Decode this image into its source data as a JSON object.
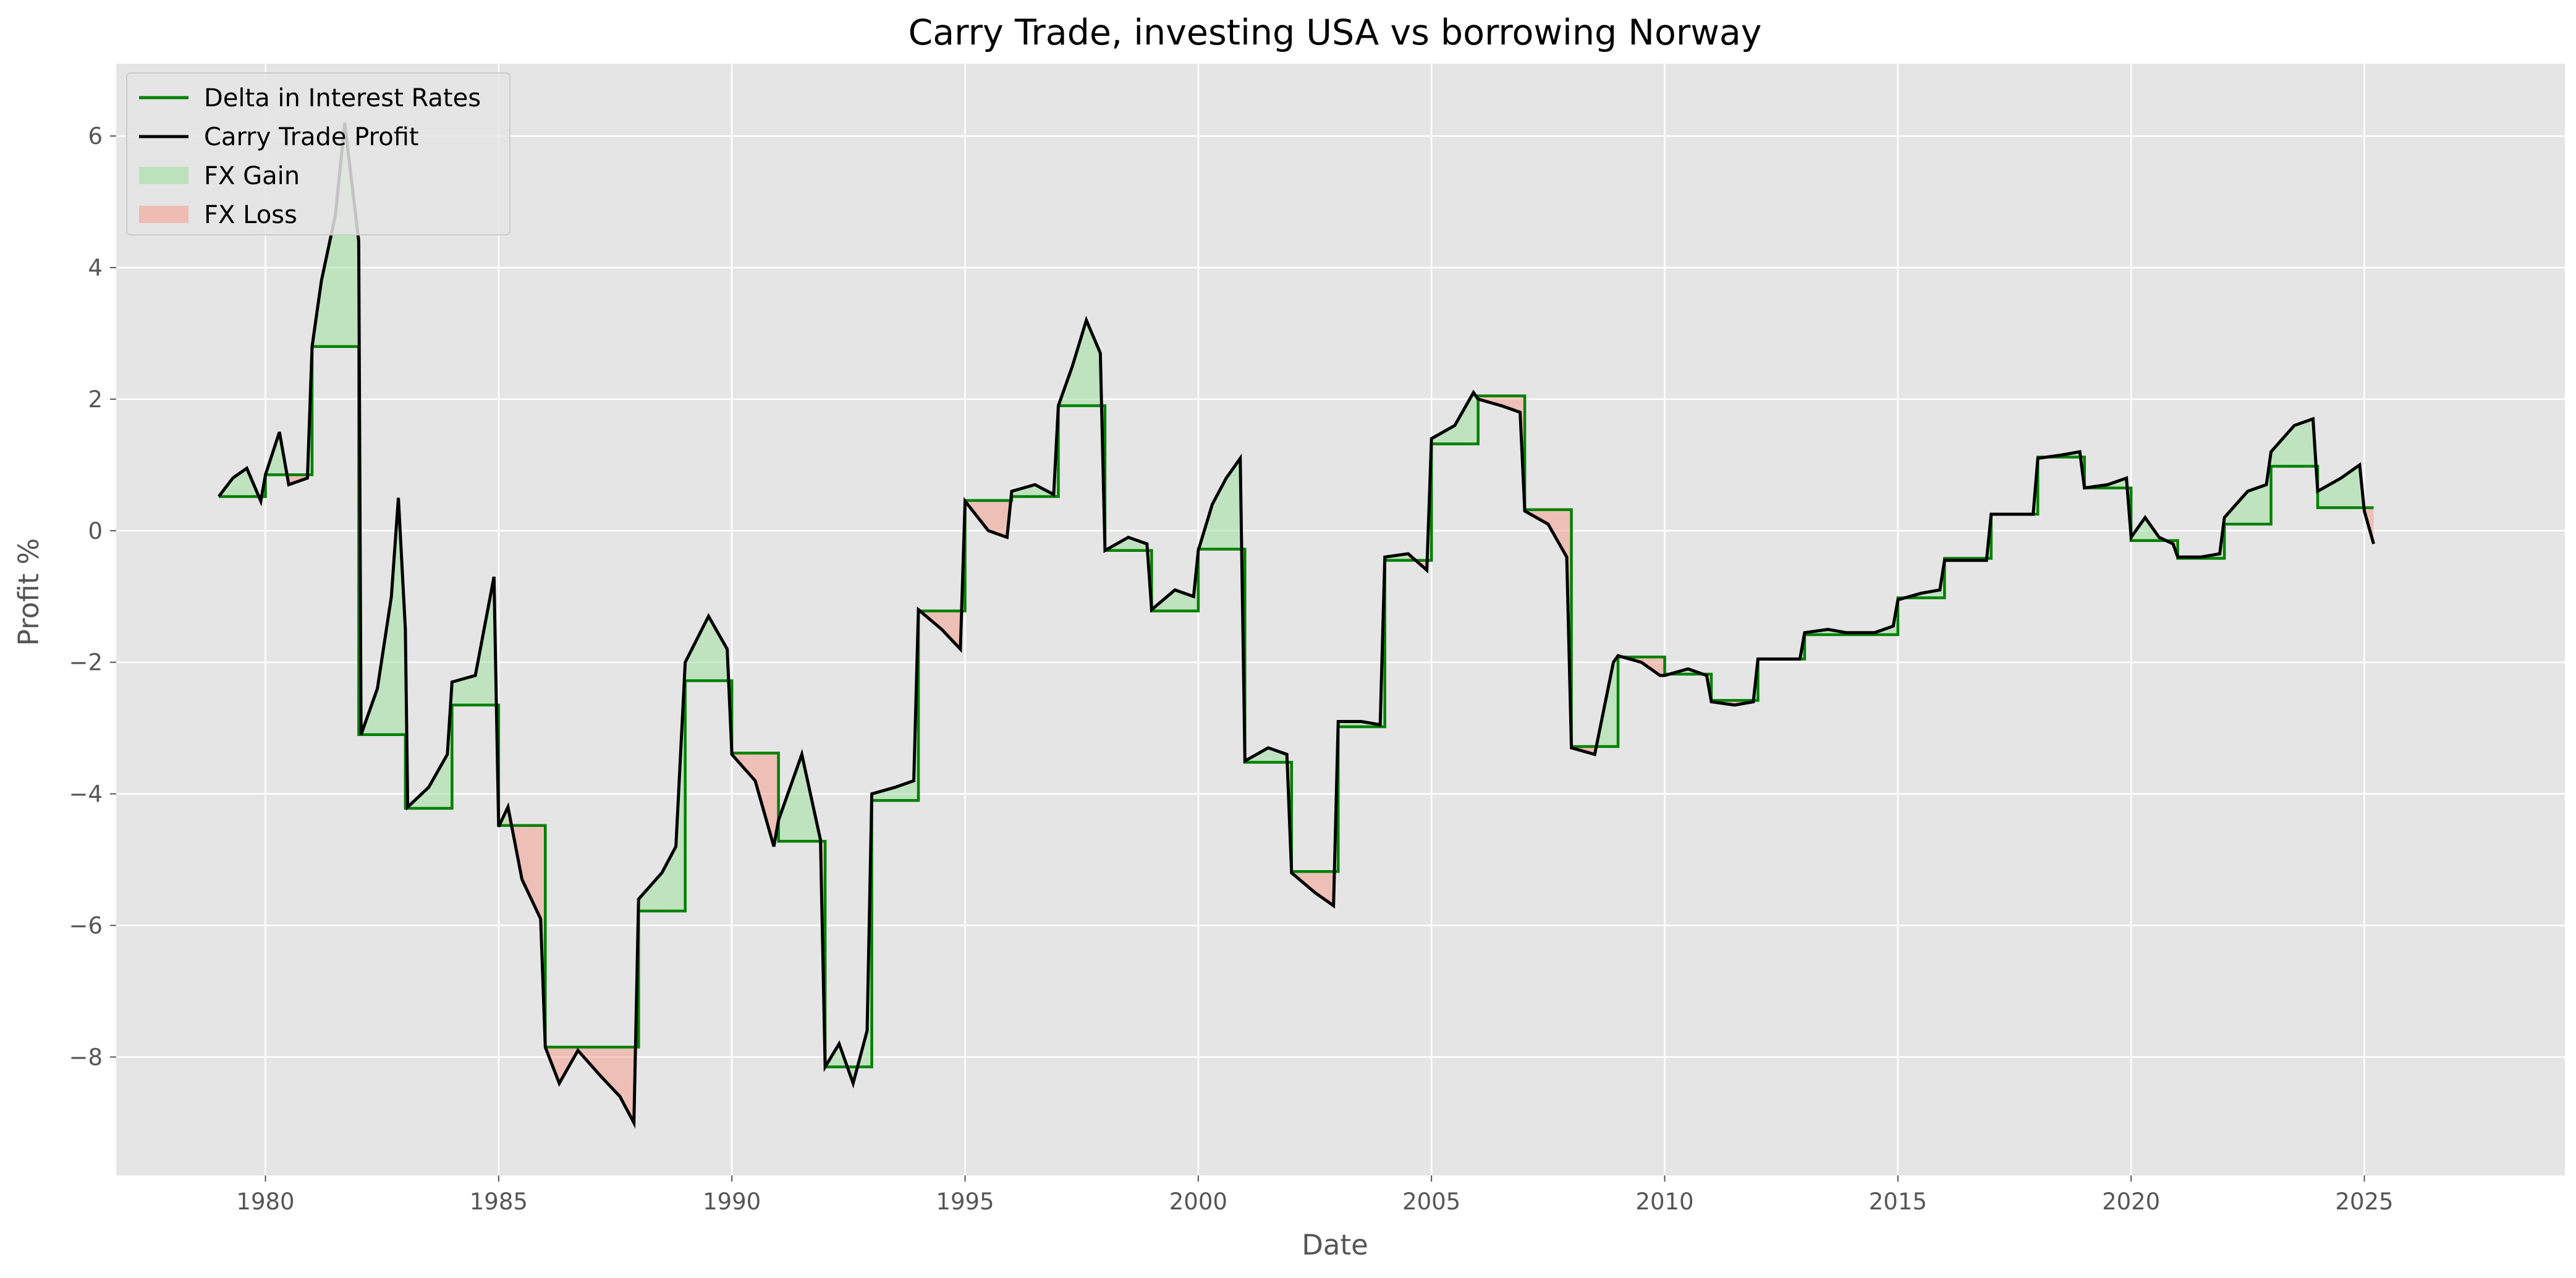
{
  "chart_data": {
    "type": "line",
    "title": "Carry Trade, investing USA vs borrowing Norway",
    "xlabel": "Date",
    "ylabel": "Profit %",
    "xlim": [
      1976.8,
      2029.3
    ],
    "ylim": [
      -9.8,
      7.1
    ],
    "xticks": [
      1980,
      1985,
      1990,
      1995,
      2000,
      2005,
      2010,
      2015,
      2020,
      2025
    ],
    "yticks": [
      6,
      4,
      2,
      0,
      -2,
      -4,
      -6,
      -8
    ],
    "grid": true,
    "legend_position": "top-left",
    "legend": [
      {
        "label": "Delta in Interest Rates",
        "kind": "line",
        "color": "#008000"
      },
      {
        "label": "Carry Trade Profit",
        "kind": "line",
        "color": "#000000"
      },
      {
        "label": "FX Gain",
        "kind": "patch",
        "color": "#a0e0a0"
      },
      {
        "label": "FX Loss",
        "kind": "patch",
        "color": "#f4a090"
      }
    ],
    "series": [
      {
        "name": "Delta in Interest Rates",
        "color": "#008000",
        "style": "step",
        "points": [
          [
            1979.0,
            0.52
          ],
          [
            1980.0,
            0.85
          ],
          [
            1981.0,
            2.8
          ],
          [
            1982.0,
            -3.1
          ],
          [
            1983.0,
            -4.22
          ],
          [
            1984.0,
            -2.65
          ],
          [
            1985.0,
            -4.48
          ],
          [
            1986.0,
            -7.85
          ],
          [
            1988.0,
            -5.78
          ],
          [
            1989.0,
            -2.28
          ],
          [
            1990.0,
            -3.38
          ],
          [
            1991.0,
            -4.72
          ],
          [
            1992.0,
            -8.15
          ],
          [
            1993.0,
            -4.1
          ],
          [
            1994.0,
            -1.22
          ],
          [
            1995.0,
            0.46
          ],
          [
            1996.0,
            0.52
          ],
          [
            1997.0,
            1.9
          ],
          [
            1998.0,
            -0.3
          ],
          [
            1999.0,
            -1.22
          ],
          [
            2000.0,
            -0.28
          ],
          [
            2001.0,
            -3.52
          ],
          [
            2002.0,
            -5.18
          ],
          [
            2003.0,
            -2.98
          ],
          [
            2004.0,
            -0.45
          ],
          [
            2005.0,
            1.32
          ],
          [
            2006.0,
            2.05
          ],
          [
            2007.0,
            0.32
          ],
          [
            2008.0,
            -3.28
          ],
          [
            2009.0,
            -1.92
          ],
          [
            2010.0,
            -2.18
          ],
          [
            2011.0,
            -2.58
          ],
          [
            2012.0,
            -1.95
          ],
          [
            2013.0,
            -1.58
          ],
          [
            2014.0,
            -1.58
          ],
          [
            2015.0,
            -1.02
          ],
          [
            2016.0,
            -0.42
          ],
          [
            2017.0,
            0.25
          ],
          [
            2018.0,
            1.12
          ],
          [
            2019.0,
            0.65
          ],
          [
            2020.0,
            -0.15
          ],
          [
            2021.0,
            -0.42
          ],
          [
            2022.0,
            0.1
          ],
          [
            2023.0,
            0.98
          ],
          [
            2024.0,
            0.35
          ],
          [
            2025.2,
            0.35
          ]
        ]
      },
      {
        "name": "Carry Trade Profit",
        "color": "#000000",
        "style": "line",
        "points": [
          [
            1979.0,
            0.52
          ],
          [
            1979.3,
            0.8
          ],
          [
            1979.6,
            0.95
          ],
          [
            1979.9,
            0.45
          ],
          [
            1980.0,
            0.85
          ],
          [
            1980.3,
            1.5
          ],
          [
            1980.5,
            0.7
          ],
          [
            1980.9,
            0.8
          ],
          [
            1981.0,
            2.8
          ],
          [
            1981.2,
            3.8
          ],
          [
            1981.5,
            4.8
          ],
          [
            1981.7,
            6.2
          ],
          [
            1981.9,
            5.0
          ],
          [
            1982.0,
            4.4
          ],
          [
            1982.05,
            -3.1
          ],
          [
            1982.4,
            -2.4
          ],
          [
            1982.7,
            -1.0
          ],
          [
            1982.85,
            0.5
          ],
          [
            1983.0,
            -1.5
          ],
          [
            1983.05,
            -4.2
          ],
          [
            1983.5,
            -3.9
          ],
          [
            1983.9,
            -3.4
          ],
          [
            1984.0,
            -2.3
          ],
          [
            1984.5,
            -2.2
          ],
          [
            1984.9,
            -0.7
          ],
          [
            1985.0,
            -4.5
          ],
          [
            1985.2,
            -4.2
          ],
          [
            1985.5,
            -5.3
          ],
          [
            1985.9,
            -5.9
          ],
          [
            1986.0,
            -7.85
          ],
          [
            1986.3,
            -8.4
          ],
          [
            1986.7,
            -7.9
          ],
          [
            1987.2,
            -8.3
          ],
          [
            1987.6,
            -8.6
          ],
          [
            1987.9,
            -9.0
          ],
          [
            1988.0,
            -5.6
          ],
          [
            1988.5,
            -5.2
          ],
          [
            1988.8,
            -4.8
          ],
          [
            1989.0,
            -2.0
          ],
          [
            1989.5,
            -1.3
          ],
          [
            1989.9,
            -1.8
          ],
          [
            1990.0,
            -3.4
          ],
          [
            1990.5,
            -3.8
          ],
          [
            1990.9,
            -4.8
          ],
          [
            1991.0,
            -4.4
          ],
          [
            1991.5,
            -3.4
          ],
          [
            1991.9,
            -4.7
          ],
          [
            1992.0,
            -8.15
          ],
          [
            1992.3,
            -7.8
          ],
          [
            1992.6,
            -8.4
          ],
          [
            1992.9,
            -7.6
          ],
          [
            1993.0,
            -4.0
          ],
          [
            1993.5,
            -3.9
          ],
          [
            1993.9,
            -3.8
          ],
          [
            1994.0,
            -1.2
          ],
          [
            1994.5,
            -1.5
          ],
          [
            1994.9,
            -1.8
          ],
          [
            1995.0,
            0.45
          ],
          [
            1995.5,
            0.0
          ],
          [
            1995.9,
            -0.1
          ],
          [
            1996.0,
            0.6
          ],
          [
            1996.5,
            0.7
          ],
          [
            1996.9,
            0.55
          ],
          [
            1997.0,
            1.9
          ],
          [
            1997.3,
            2.5
          ],
          [
            1997.6,
            3.2
          ],
          [
            1997.9,
            2.7
          ],
          [
            1998.0,
            -0.3
          ],
          [
            1998.5,
            -0.1
          ],
          [
            1998.9,
            -0.2
          ],
          [
            1999.0,
            -1.2
          ],
          [
            1999.5,
            -0.9
          ],
          [
            1999.9,
            -1.0
          ],
          [
            2000.0,
            -0.3
          ],
          [
            2000.3,
            0.4
          ],
          [
            2000.6,
            0.8
          ],
          [
            2000.9,
            1.1
          ],
          [
            2001.0,
            -3.5
          ],
          [
            2001.5,
            -3.3
          ],
          [
            2001.9,
            -3.4
          ],
          [
            2002.0,
            -5.2
          ],
          [
            2002.5,
            -5.5
          ],
          [
            2002.9,
            -5.7
          ],
          [
            2003.0,
            -2.9
          ],
          [
            2003.5,
            -2.9
          ],
          [
            2003.9,
            -2.95
          ],
          [
            2004.0,
            -0.4
          ],
          [
            2004.5,
            -0.35
          ],
          [
            2004.9,
            -0.6
          ],
          [
            2005.0,
            1.4
          ],
          [
            2005.5,
            1.6
          ],
          [
            2005.9,
            2.1
          ],
          [
            2006.0,
            2.0
          ],
          [
            2006.5,
            1.9
          ],
          [
            2006.9,
            1.8
          ],
          [
            2007.0,
            0.3
          ],
          [
            2007.5,
            0.1
          ],
          [
            2007.9,
            -0.4
          ],
          [
            2008.0,
            -3.3
          ],
          [
            2008.5,
            -3.4
          ],
          [
            2008.9,
            -2.0
          ],
          [
            2009.0,
            -1.9
          ],
          [
            2009.5,
            -2.0
          ],
          [
            2009.9,
            -2.2
          ],
          [
            2010.0,
            -2.2
          ],
          [
            2010.5,
            -2.1
          ],
          [
            2010.9,
            -2.2
          ],
          [
            2011.0,
            -2.6
          ],
          [
            2011.5,
            -2.65
          ],
          [
            2011.9,
            -2.6
          ],
          [
            2012.0,
            -1.95
          ],
          [
            2012.5,
            -1.95
          ],
          [
            2012.9,
            -1.95
          ],
          [
            2013.0,
            -1.55
          ],
          [
            2013.5,
            -1.5
          ],
          [
            2013.9,
            -1.55
          ],
          [
            2014.0,
            -1.55
          ],
          [
            2014.5,
            -1.55
          ],
          [
            2014.9,
            -1.45
          ],
          [
            2015.0,
            -1.05
          ],
          [
            2015.5,
            -0.95
          ],
          [
            2015.9,
            -0.9
          ],
          [
            2016.0,
            -0.45
          ],
          [
            2016.5,
            -0.45
          ],
          [
            2016.9,
            -0.45
          ],
          [
            2017.0,
            0.25
          ],
          [
            2017.5,
            0.25
          ],
          [
            2017.9,
            0.25
          ],
          [
            2018.0,
            1.1
          ],
          [
            2018.5,
            1.15
          ],
          [
            2018.9,
            1.2
          ],
          [
            2019.0,
            0.65
          ],
          [
            2019.5,
            0.7
          ],
          [
            2019.9,
            0.8
          ],
          [
            2020.0,
            -0.1
          ],
          [
            2020.3,
            0.2
          ],
          [
            2020.6,
            -0.1
          ],
          [
            2020.9,
            -0.2
          ],
          [
            2021.0,
            -0.4
          ],
          [
            2021.5,
            -0.4
          ],
          [
            2021.9,
            -0.35
          ],
          [
            2022.0,
            0.2
          ],
          [
            2022.5,
            0.6
          ],
          [
            2022.9,
            0.7
          ],
          [
            2023.0,
            1.2
          ],
          [
            2023.5,
            1.6
          ],
          [
            2023.9,
            1.7
          ],
          [
            2024.0,
            0.6
          ],
          [
            2024.5,
            0.8
          ],
          [
            2024.9,
            1.0
          ],
          [
            2025.0,
            0.3
          ],
          [
            2025.2,
            -0.2
          ]
        ]
      }
    ]
  }
}
